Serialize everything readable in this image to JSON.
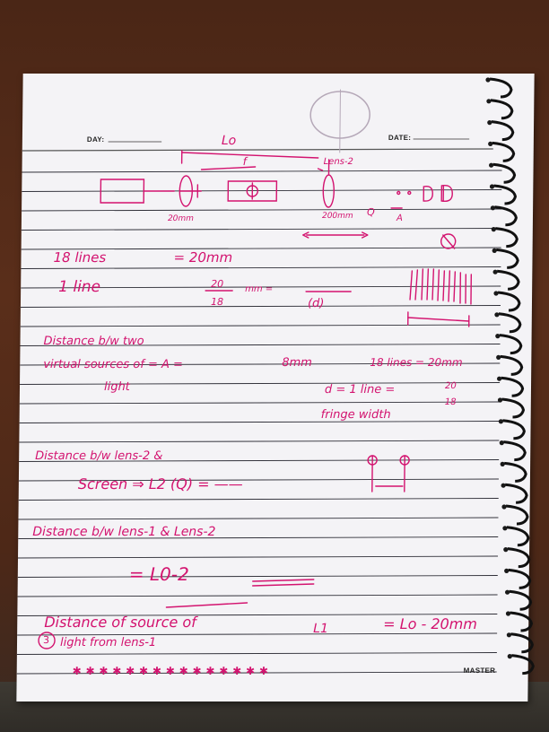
{
  "header": {
    "day_label": "DAY:",
    "date_label": "DATE:"
  },
  "footer": {
    "master_label": "MASTER",
    "stars": "✱ ✱ ✱ ✱ ✱ ✱ ✱ ✱ ✱ ✱ ✱ ✱ ✱ ✱ ✱"
  },
  "notes": {
    "diagram": {
      "L0": "Lo",
      "f": "f",
      "lens2": "Lens-2",
      "d20": "20mm",
      "d200": "200mm",
      "q": "Q",
      "A": "A"
    },
    "lines_count": "18 lines",
    "lines_equals": "= 20mm",
    "one_line": "1 line",
    "frac_num": "20",
    "frac_den": "18",
    "frac_unit": "mm =",
    "d_paren": "(d)",
    "dist_virtual_1": "Distance b/w two",
    "dist_virtual_2": "virtual sources of = A =",
    "dist_virtual_3": "light",
    "val_8mm": "8mm",
    "lines18_20": "18 lines = 20mm",
    "d_eq": "d = 1 line =",
    "d_num": "20",
    "d_den": "18",
    "fringe": "fringe width",
    "lens2_screen_1": "Distance b/w lens-2 &",
    "lens2_screen_2": "Screen ⇒ L2 (Q) = ——",
    "lens1_lens2": "Distance b/w lens-1 & Lens-2",
    "eq_L0": "= L0-2",
    "source_1": "Distance of source of",
    "source_2": "light from lens-1",
    "L1": "L1",
    "L1_eq": "= Lo - 20mm",
    "circled_3": "3"
  },
  "ink_color": "#d3136f"
}
